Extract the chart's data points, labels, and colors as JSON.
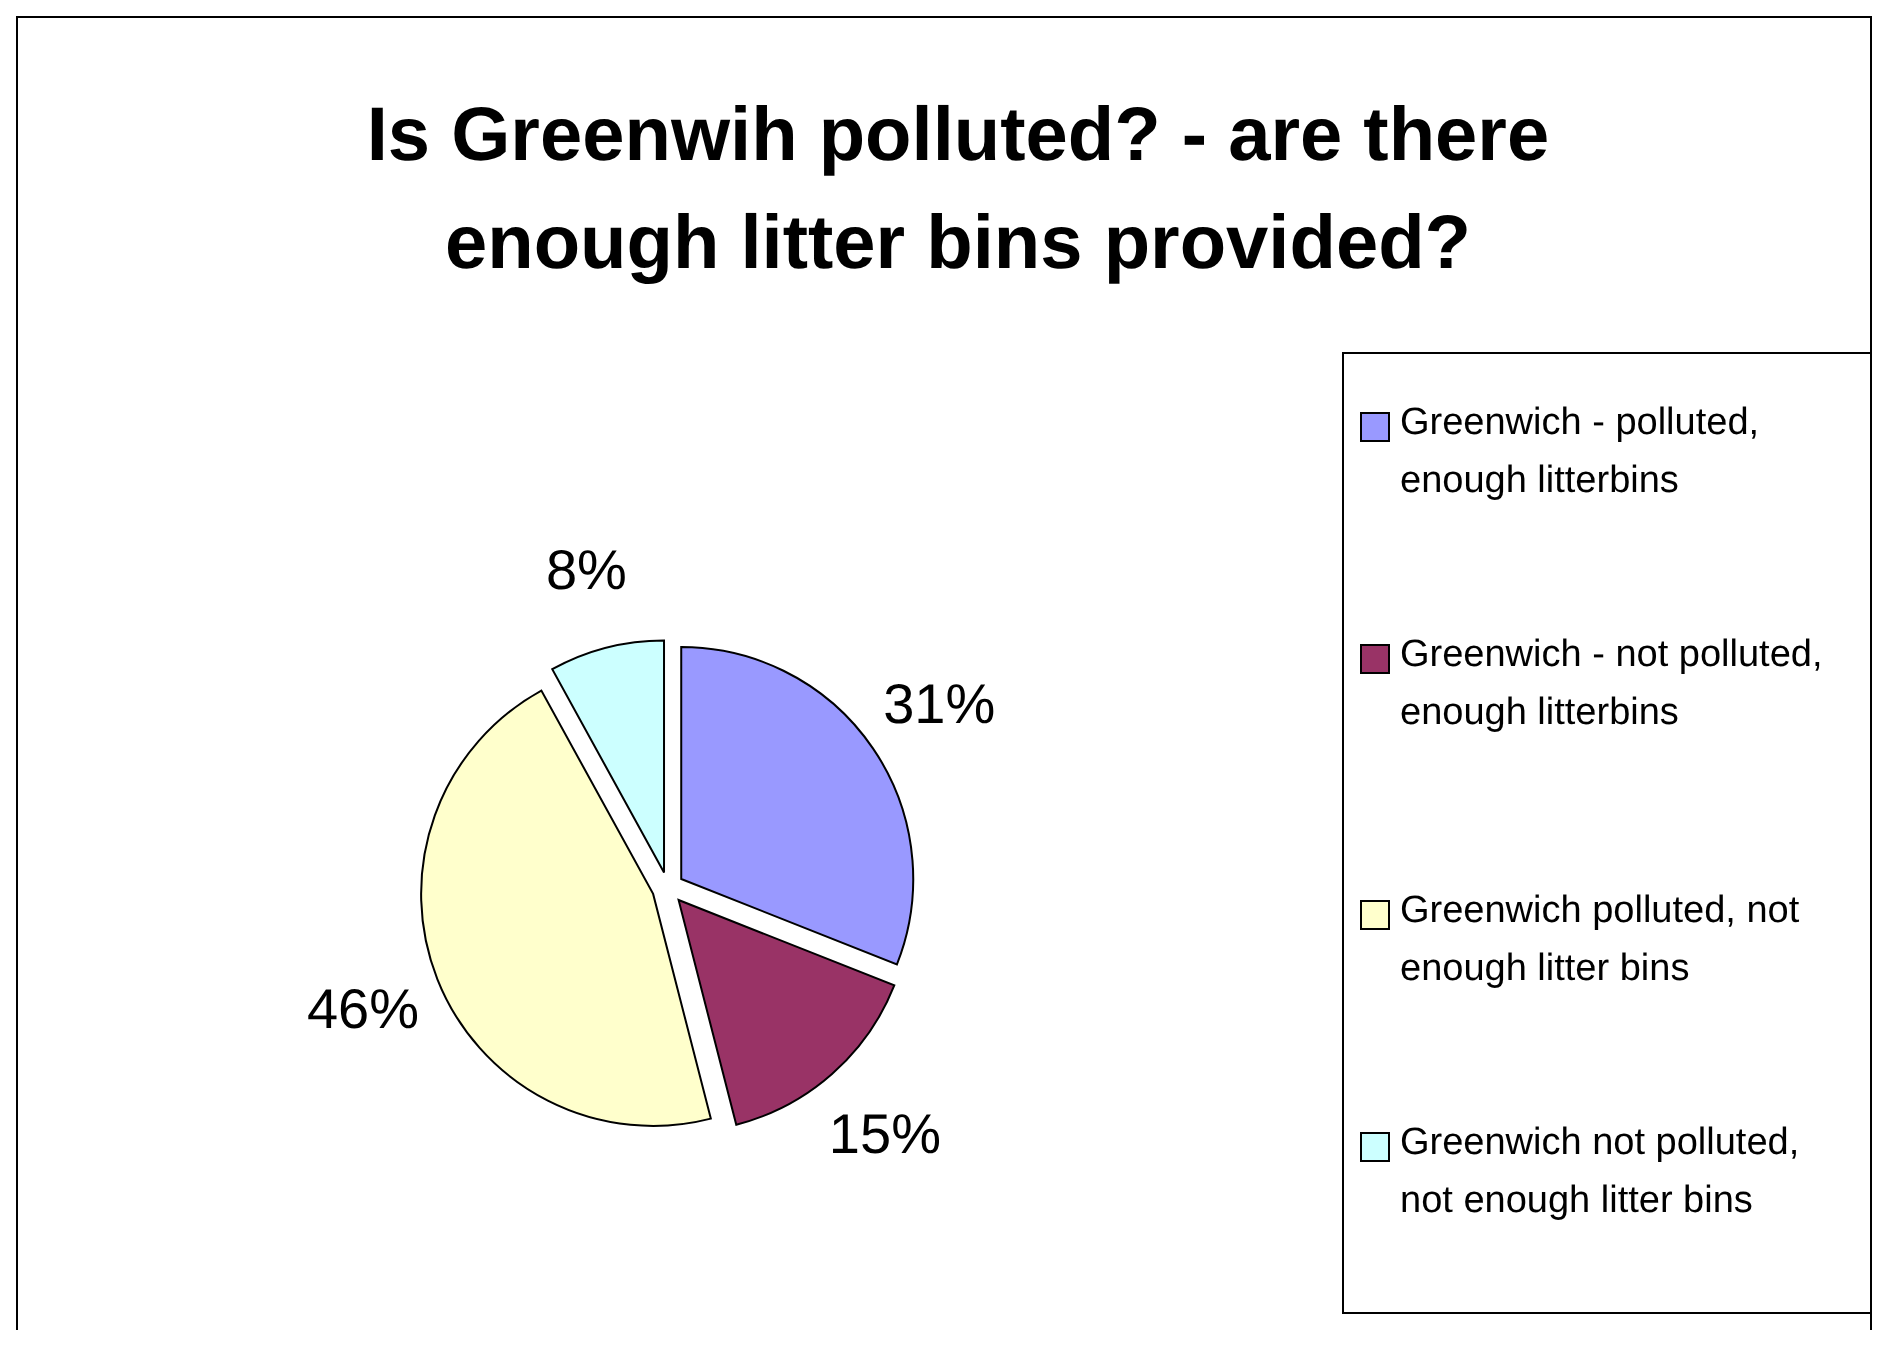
{
  "chart_data": {
    "type": "pie",
    "title": "Is Greenwih polluted? - are there enough litter bins provided?",
    "categories": [
      "Greenwich - polluted, enough litterbins",
      "Greenwich - not polluted, enough litterbins",
      "Greenwich polluted, not enough litter bins",
      "Greenwich not polluted, not enough litter bins"
    ],
    "values": [
      31,
      15,
      46,
      8
    ],
    "value_labels": [
      "31%",
      "15%",
      "46%",
      "8%"
    ],
    "colors": [
      "#9999ff",
      "#993366",
      "#ffffcc",
      "#ccffff"
    ],
    "legend": "right"
  }
}
